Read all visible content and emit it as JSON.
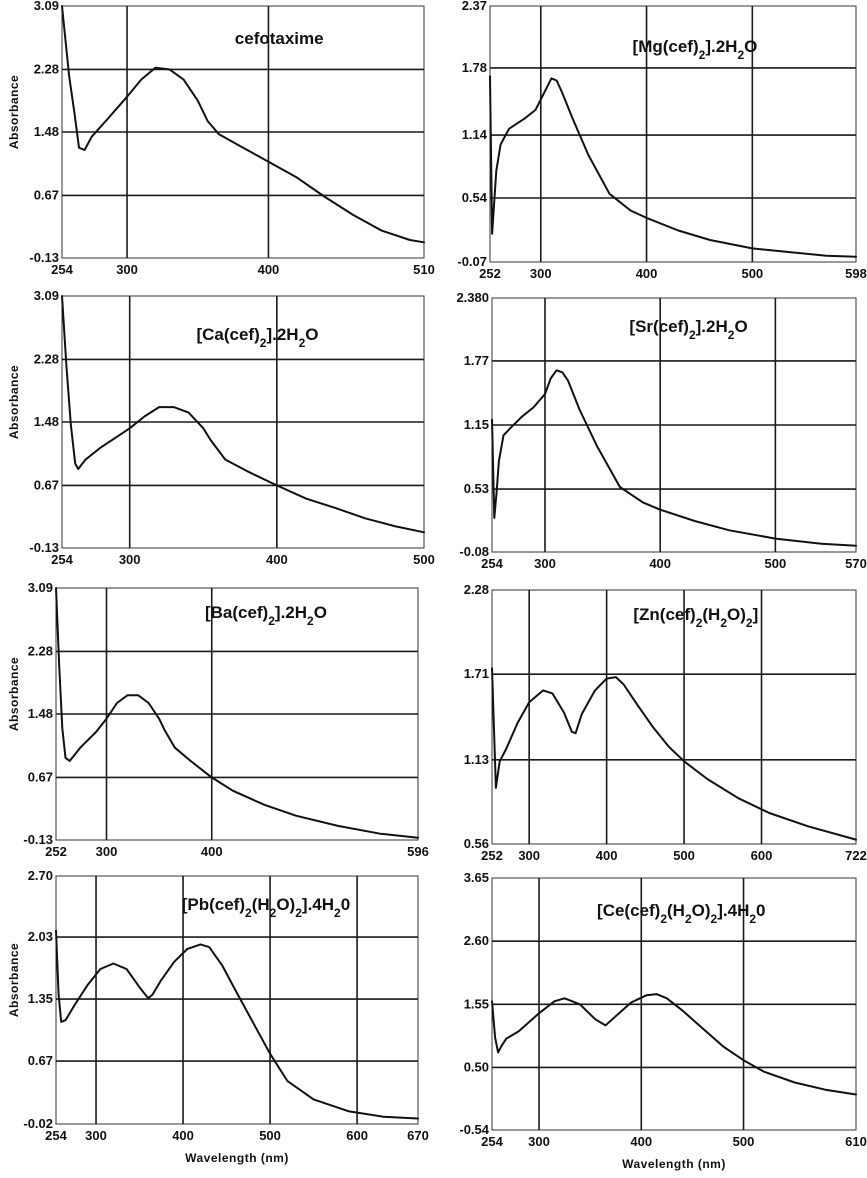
{
  "chart_data": [
    {
      "type": "line",
      "title": "cefotaxime",
      "ylabel": "Absorbance",
      "xlabel": "",
      "x_ticks": [
        "254",
        "300",
        "400",
        "510"
      ],
      "y_ticks": [
        "3.09",
        "2.28",
        "1.48",
        "0.67",
        "-0.13"
      ],
      "xlim": [
        254,
        510
      ],
      "ylim": [
        -0.13,
        3.09
      ],
      "grid": true,
      "series": [
        {
          "x": [
            254,
            259,
            263,
            266,
            270,
            275,
            285,
            300,
            310,
            320,
            330,
            340,
            350,
            357,
            365,
            380,
            400,
            420,
            440,
            460,
            480,
            500,
            510
          ],
          "y": [
            3.09,
            2.2,
            1.7,
            1.28,
            1.25,
            1.42,
            1.62,
            1.93,
            2.15,
            2.3,
            2.28,
            2.15,
            1.88,
            1.62,
            1.45,
            1.3,
            1.1,
            0.9,
            0.65,
            0.42,
            0.22,
            0.1,
            0.07
          ]
        }
      ]
    },
    {
      "type": "line",
      "title": "[Mg(cef)2].2H2O",
      "title_parts": [
        {
          "t": "[Mg(cef)"
        },
        {
          "t": "2",
          "sub": true
        },
        {
          "t": "].2H"
        },
        {
          "t": "2",
          "sub": true
        },
        {
          "t": "O"
        }
      ],
      "ylabel": "",
      "xlabel": "",
      "x_ticks": [
        "252",
        "300",
        "400",
        "500",
        "598"
      ],
      "y_ticks": [
        "2.37",
        "1.78",
        "1.14",
        "0.54",
        "-0.07"
      ],
      "xlim": [
        252,
        598
      ],
      "ylim": [
        -0.07,
        2.37
      ],
      "grid": true,
      "series": [
        {
          "x": [
            252,
            254,
            256,
            258,
            262,
            270,
            285,
            295,
            305,
            310,
            315,
            320,
            330,
            345,
            365,
            385,
            400,
            430,
            460,
            500,
            540,
            570,
            598
          ],
          "y": [
            1.7,
            0.2,
            0.5,
            0.8,
            1.05,
            1.2,
            1.3,
            1.38,
            1.58,
            1.68,
            1.66,
            1.55,
            1.3,
            0.95,
            0.58,
            0.42,
            0.35,
            0.23,
            0.14,
            0.06,
            0.02,
            -0.01,
            -0.02
          ]
        }
      ]
    },
    {
      "type": "line",
      "title": "[Ca(cef)2].2H2O",
      "title_parts": [
        {
          "t": "[Ca(cef)"
        },
        {
          "t": "2",
          "sub": true
        },
        {
          "t": "].2H"
        },
        {
          "t": "2",
          "sub": true
        },
        {
          "t": "O"
        }
      ],
      "ylabel": "Absorbance",
      "xlabel": "",
      "x_ticks": [
        "254",
        "300",
        "400",
        "500"
      ],
      "y_ticks": [
        "3.09",
        "2.28",
        "1.48",
        "0.67",
        "-0.13"
      ],
      "xlim": [
        254,
        500
      ],
      "ylim": [
        -0.13,
        3.09
      ],
      "grid": true,
      "series": [
        {
          "x": [
            254,
            257,
            260,
            263,
            265,
            270,
            280,
            300,
            310,
            320,
            330,
            340,
            350,
            355,
            365,
            380,
            400,
            420,
            440,
            460,
            480,
            500
          ],
          "y": [
            3.09,
            2.2,
            1.45,
            0.95,
            0.88,
            1.0,
            1.15,
            1.4,
            1.55,
            1.67,
            1.67,
            1.6,
            1.4,
            1.25,
            1.0,
            0.85,
            0.67,
            0.5,
            0.38,
            0.25,
            0.15,
            0.07
          ]
        }
      ]
    },
    {
      "type": "line",
      "title": "[Sr(cef)2].2H2O",
      "title_parts": [
        {
          "t": "[Sr(cef)"
        },
        {
          "t": "2",
          "sub": true
        },
        {
          "t": "].2H"
        },
        {
          "t": "2",
          "sub": true
        },
        {
          "t": "O"
        }
      ],
      "ylabel": "",
      "xlabel": "",
      "x_ticks": [
        "254",
        "300",
        "400",
        "500",
        "570"
      ],
      "y_ticks": [
        "2.380",
        "1.77",
        "1.15",
        "0.53",
        "-0.08"
      ],
      "xlim": [
        254,
        570
      ],
      "ylim": [
        -0.08,
        2.38
      ],
      "grid": true,
      "series": [
        {
          "x": [
            254,
            256,
            258,
            260,
            264,
            270,
            280,
            290,
            300,
            305,
            310,
            315,
            320,
            330,
            345,
            365,
            385,
            400,
            430,
            460,
            500,
            540,
            570
          ],
          "y": [
            1.2,
            0.25,
            0.5,
            0.8,
            1.05,
            1.12,
            1.23,
            1.32,
            1.45,
            1.6,
            1.68,
            1.66,
            1.58,
            1.3,
            0.95,
            0.55,
            0.4,
            0.33,
            0.22,
            0.13,
            0.05,
            0.0,
            -0.02
          ]
        }
      ]
    },
    {
      "type": "line",
      "title": "[Ba(cef)2].2H2O",
      "title_parts": [
        {
          "t": "[Ba(cef)"
        },
        {
          "t": "2",
          "sub": true
        },
        {
          "t": "].2H"
        },
        {
          "t": "2",
          "sub": true
        },
        {
          "t": "O"
        }
      ],
      "ylabel": "Absorbance",
      "xlabel": "",
      "x_ticks": [
        "252",
        "300",
        "400",
        "596"
      ],
      "y_ticks": [
        "3.09",
        "2.28",
        "1.48",
        "0.67",
        "-0.13"
      ],
      "xlim": [
        252,
        596
      ],
      "ylim": [
        -0.13,
        3.09
      ],
      "grid": true,
      "series": [
        {
          "x": [
            252,
            255,
            258,
            261,
            265,
            275,
            290,
            300,
            310,
            320,
            330,
            340,
            350,
            355,
            365,
            380,
            400,
            420,
            450,
            480,
            520,
            560,
            596
          ],
          "y": [
            3.09,
            2.1,
            1.3,
            0.92,
            0.88,
            1.05,
            1.25,
            1.42,
            1.62,
            1.72,
            1.72,
            1.62,
            1.42,
            1.28,
            1.05,
            0.88,
            0.67,
            0.5,
            0.32,
            0.18,
            0.05,
            -0.05,
            -0.1
          ]
        }
      ]
    },
    {
      "type": "line",
      "title": "[Zn(cef)2(H2O)2]",
      "title_parts": [
        {
          "t": "[Zn(cef)"
        },
        {
          "t": "2",
          "sub": true
        },
        {
          "t": "(H"
        },
        {
          "t": "2",
          "sub": true
        },
        {
          "t": "O)"
        },
        {
          "t": "2",
          "sub": true
        },
        {
          "t": "]"
        }
      ],
      "ylabel": "",
      "xlabel": "",
      "x_ticks": [
        "252",
        "300",
        "400",
        "500",
        "600",
        "722"
      ],
      "y_ticks": [
        "2.28",
        "1.71",
        "1.13",
        "0.56"
      ],
      "xlim": [
        252,
        722
      ],
      "ylim": [
        0.56,
        2.28
      ],
      "grid": true,
      "series": [
        {
          "x": [
            252,
            257,
            262,
            270,
            285,
            300,
            318,
            330,
            345,
            355,
            360,
            368,
            385,
            400,
            412,
            422,
            440,
            460,
            480,
            500,
            530,
            570,
            610,
            660,
            722
          ],
          "y": [
            1.75,
            0.94,
            1.12,
            1.2,
            1.38,
            1.52,
            1.6,
            1.58,
            1.45,
            1.32,
            1.31,
            1.44,
            1.6,
            1.68,
            1.69,
            1.64,
            1.5,
            1.35,
            1.22,
            1.12,
            1.0,
            0.87,
            0.77,
            0.68,
            0.59
          ]
        }
      ]
    },
    {
      "type": "line",
      "title": "[Pb(cef)2(H2O)2].4H20",
      "title_parts": [
        {
          "t": "[Pb(cef)"
        },
        {
          "t": "2",
          "sub": true
        },
        {
          "t": "(H"
        },
        {
          "t": "2",
          "sub": true
        },
        {
          "t": "O)"
        },
        {
          "t": "2",
          "sub": true
        },
        {
          "t": "].4H"
        },
        {
          "t": "2",
          "sub": true
        },
        {
          "t": "0"
        }
      ],
      "ylabel": "Absorbance",
      "xlabel": "Wavelength (nm)",
      "x_ticks": [
        "254",
        "300",
        "400",
        "500",
        "600",
        "670"
      ],
      "y_ticks": [
        "2.70",
        "2.03",
        "1.35",
        "0.67",
        "-0.02"
      ],
      "xlim": [
        254,
        670
      ],
      "ylim": [
        -0.02,
        2.7
      ],
      "grid": true,
      "series": [
        {
          "x": [
            254,
            257,
            260,
            265,
            275,
            290,
            305,
            320,
            335,
            350,
            360,
            365,
            375,
            390,
            405,
            420,
            430,
            445,
            460,
            480,
            500,
            520,
            550,
            590,
            630,
            670
          ],
          "y": [
            2.1,
            1.4,
            1.1,
            1.12,
            1.28,
            1.5,
            1.68,
            1.74,
            1.68,
            1.48,
            1.36,
            1.4,
            1.56,
            1.76,
            1.9,
            1.95,
            1.92,
            1.72,
            1.45,
            1.1,
            0.75,
            0.45,
            0.25,
            0.12,
            0.06,
            0.04
          ]
        }
      ]
    },
    {
      "type": "line",
      "title": "[Ce(cef)2(H2O)2].4H20",
      "title_parts": [
        {
          "t": "[Ce(cef)"
        },
        {
          "t": "2",
          "sub": true
        },
        {
          "t": "(H"
        },
        {
          "t": "2",
          "sub": true
        },
        {
          "t": "O)"
        },
        {
          "t": "2",
          "sub": true
        },
        {
          "t": "].4H"
        },
        {
          "t": "2",
          "sub": true
        },
        {
          "t": "0"
        }
      ],
      "ylabel": "",
      "xlabel": "Wavelength (nm)",
      "x_ticks": [
        "254",
        "300",
        "400",
        "500",
        "610"
      ],
      "y_ticks": [
        "3.65",
        "2.60",
        "1.55",
        "0.50",
        "-0.54"
      ],
      "xlim": [
        254,
        610
      ],
      "ylim": [
        -0.54,
        3.65
      ],
      "grid": true,
      "series": [
        {
          "x": [
            254,
            257,
            260,
            263,
            268,
            280,
            300,
            315,
            325,
            340,
            355,
            365,
            375,
            390,
            405,
            415,
            425,
            440,
            460,
            480,
            500,
            520,
            550,
            580,
            610
          ],
          "y": [
            1.6,
            1.0,
            0.75,
            0.85,
            0.98,
            1.1,
            1.4,
            1.6,
            1.65,
            1.55,
            1.3,
            1.2,
            1.35,
            1.58,
            1.7,
            1.72,
            1.65,
            1.45,
            1.15,
            0.85,
            0.62,
            0.43,
            0.25,
            0.13,
            0.05
          ]
        }
      ]
    }
  ]
}
